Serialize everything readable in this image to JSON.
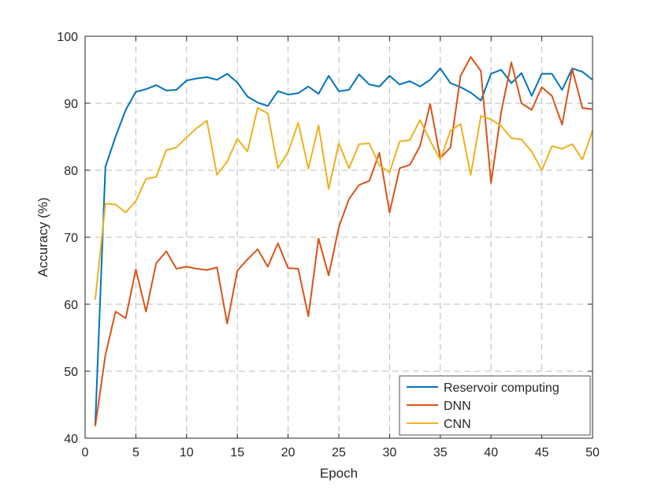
{
  "chart_data": {
    "type": "line",
    "title": "",
    "xlabel": "Epoch",
    "ylabel": "Accuracy (%)",
    "xlim": [
      0,
      50
    ],
    "ylim": [
      40,
      100
    ],
    "xticks": [
      0,
      5,
      10,
      15,
      20,
      25,
      30,
      35,
      40,
      45,
      50
    ],
    "yticks": [
      40,
      50,
      60,
      70,
      80,
      90,
      100
    ],
    "grid": true,
    "legend_position": "bottom-right",
    "x": [
      1,
      2,
      3,
      4,
      5,
      6,
      7,
      8,
      9,
      10,
      11,
      12,
      13,
      14,
      15,
      16,
      17,
      18,
      19,
      20,
      21,
      22,
      23,
      24,
      25,
      26,
      27,
      28,
      29,
      30,
      31,
      32,
      33,
      34,
      35,
      36,
      37,
      38,
      39,
      40,
      41,
      42,
      43,
      44,
      45,
      46,
      47,
      48,
      49,
      50
    ],
    "series": [
      {
        "name": "Reservoir computing",
        "color": "#0072BD",
        "values": [
          42.0,
          80.5,
          85.0,
          89.0,
          91.7,
          92.1,
          92.7,
          91.9,
          92.0,
          93.4,
          93.7,
          93.9,
          93.5,
          94.4,
          93.1,
          91.0,
          90.1,
          89.6,
          91.8,
          91.3,
          91.5,
          92.5,
          91.4,
          94.1,
          91.8,
          92.0,
          94.3,
          92.8,
          92.5,
          94.1,
          92.8,
          93.3,
          92.5,
          93.5,
          95.2,
          93.0,
          92.4,
          91.6,
          90.4,
          94.4,
          95.0,
          93.0,
          94.5,
          91.1,
          94.4,
          94.4,
          92.0,
          95.2,
          94.7,
          93.5
        ]
      },
      {
        "name": "DNN",
        "color": "#D95319",
        "values": [
          41.8,
          52.4,
          58.9,
          57.9,
          65.2,
          58.9,
          66.1,
          67.9,
          65.3,
          65.6,
          65.3,
          65.1,
          65.5,
          57.1,
          65.0,
          66.7,
          68.2,
          65.6,
          69.1,
          65.4,
          65.3,
          58.2,
          69.8,
          64.3,
          71.5,
          75.7,
          77.8,
          78.4,
          82.6,
          73.7,
          80.3,
          80.8,
          83.6,
          89.9,
          81.8,
          83.4,
          94.1,
          96.9,
          94.8,
          78.1,
          88.7,
          96.1,
          90.0,
          89.0,
          92.4,
          91.1,
          86.8,
          95.1,
          89.3,
          89.1
        ]
      },
      {
        "name": "CNN",
        "color": "#EDB120",
        "values": [
          60.7,
          75.0,
          74.9,
          73.7,
          75.4,
          78.7,
          79.0,
          83.0,
          83.4,
          84.9,
          86.3,
          87.4,
          79.3,
          81.3,
          84.7,
          82.8,
          89.3,
          88.5,
          80.3,
          82.7,
          87.1,
          80.2,
          86.7,
          77.2,
          84.0,
          80.3,
          83.9,
          84.0,
          80.7,
          79.7,
          84.3,
          84.5,
          87.5,
          84.4,
          81.6,
          85.9,
          86.9,
          79.3,
          88.1,
          87.6,
          86.6,
          84.8,
          84.6,
          82.8,
          80.0,
          83.6,
          83.2,
          83.9,
          81.6,
          85.9
        ]
      }
    ]
  },
  "colors": {
    "axis": "#262626",
    "grid": "#bdbdbd",
    "background": "#ffffff"
  }
}
